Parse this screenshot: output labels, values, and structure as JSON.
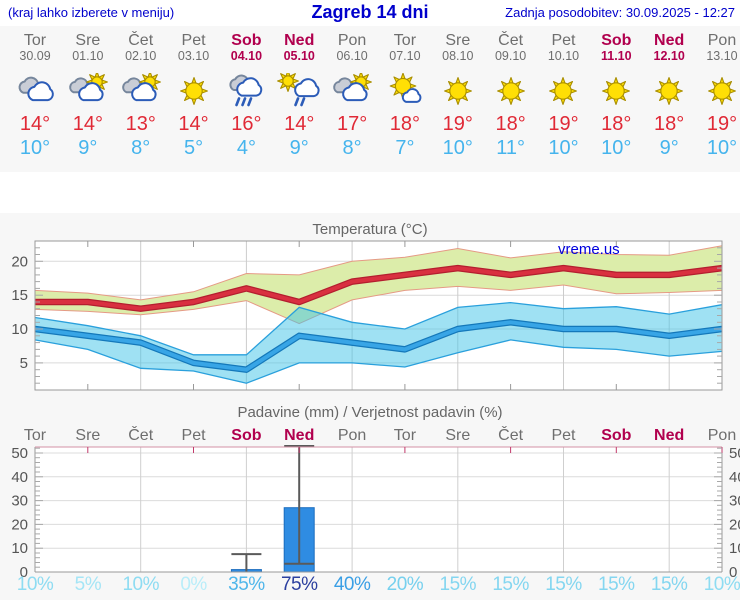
{
  "header": {
    "hint": "(kraj lahko izberete v meniju)",
    "title": "Zagreb 14 dni",
    "updated": "Zadnja posodobitev: 30.09.2025 - 12:27"
  },
  "watermark": {
    "label": "vreme.us",
    "color": "#0000dd"
  },
  "colors": {
    "weekday": "#6e6e6e",
    "weekend": "#b1004e",
    "high_temp": "#e02936",
    "low_temp": "#45b4ed",
    "header_blue": "#0000cc"
  },
  "forecast": {
    "days": [
      {
        "name": "Tor",
        "date": "30.09",
        "icon": "cloudy",
        "high": "14°",
        "low": "10°",
        "weekend": false
      },
      {
        "name": "Sre",
        "date": "01.10",
        "icon": "sun-cloud",
        "high": "14°",
        "low": "9°",
        "weekend": false
      },
      {
        "name": "Čet",
        "date": "02.10",
        "icon": "sun-cloud",
        "high": "13°",
        "low": "8°",
        "weekend": false
      },
      {
        "name": "Pet",
        "date": "03.10",
        "icon": "sunny",
        "high": "14°",
        "low": "5°",
        "weekend": false
      },
      {
        "name": "Sob",
        "date": "04.10",
        "icon": "rain",
        "high": "16°",
        "low": "4°",
        "weekend": true
      },
      {
        "name": "Ned",
        "date": "05.10",
        "icon": "sun-rain",
        "high": "14°",
        "low": "9°",
        "weekend": true
      },
      {
        "name": "Pon",
        "date": "06.10",
        "icon": "sun-cloud",
        "high": "17°",
        "low": "8°",
        "weekend": false
      },
      {
        "name": "Tor",
        "date": "07.10",
        "icon": "mostly-sunny",
        "high": "18°",
        "low": "7°",
        "weekend": false
      },
      {
        "name": "Sre",
        "date": "08.10",
        "icon": "sunny",
        "high": "19°",
        "low": "10°",
        "weekend": false
      },
      {
        "name": "Čet",
        "date": "09.10",
        "icon": "sunny",
        "high": "18°",
        "low": "11°",
        "weekend": false
      },
      {
        "name": "Pet",
        "date": "10.10",
        "icon": "sunny",
        "high": "19°",
        "low": "10°",
        "weekend": false
      },
      {
        "name": "Sob",
        "date": "11.10",
        "icon": "sunny",
        "high": "18°",
        "low": "10°",
        "weekend": true
      },
      {
        "name": "Ned",
        "date": "12.10",
        "icon": "sunny",
        "high": "18°",
        "low": "9°",
        "weekend": true
      },
      {
        "name": "Pon",
        "date": "13.10",
        "icon": "sunny",
        "high": "19°",
        "low": "10°",
        "weekend": false
      }
    ]
  },
  "chart_data": [
    {
      "type": "line",
      "title": "Temperatura (°C)",
      "categories": [
        "Tor 30.09",
        "Sre 01.10",
        "Čet 02.10",
        "Pet 03.10",
        "Sob 04.10",
        "Ned 05.10",
        "Pon 06.10",
        "Tor 07.10",
        "Sre 08.10",
        "Čet 09.10",
        "Pet 10.10",
        "Sob 11.10",
        "Ned 12.10",
        "Pon 13.10"
      ],
      "ylim": [
        1,
        23
      ],
      "yticks": [
        5,
        10,
        15,
        20
      ],
      "grid": true,
      "legend": "none",
      "series": [
        {
          "name": "max_temp",
          "color": "#d22c3c",
          "values": [
            14,
            14,
            13,
            14,
            16,
            14,
            17,
            18,
            19,
            18,
            19,
            18,
            18,
            19
          ]
        },
        {
          "name": "max_range_upper",
          "color": "#dcedaa",
          "values": [
            15.7,
            15.3,
            14.3,
            15.5,
            18.2,
            18.0,
            20.0,
            20.6,
            21.9,
            20.5,
            21.4,
            21.0,
            20.9,
            22.3
          ]
        },
        {
          "name": "max_range_lower",
          "color": "#dcedaa",
          "values": [
            12.9,
            12.6,
            12.1,
            12.9,
            14.2,
            10.8,
            14.3,
            15.7,
            16.3,
            15.7,
            16.5,
            15.2,
            15.4,
            15.7
          ]
        },
        {
          "name": "min_temp",
          "color": "#38a5e6",
          "values": [
            10,
            9,
            8,
            5,
            4,
            9,
            8,
            7,
            10,
            11,
            10,
            10,
            9,
            10
          ]
        },
        {
          "name": "min_range_upper",
          "color": "#8edcf0",
          "values": [
            11.7,
            10.5,
            9.0,
            6.2,
            6.2,
            13.2,
            11.0,
            10.0,
            13.2,
            13.9,
            13.0,
            13.3,
            12.2,
            13.6
          ]
        },
        {
          "name": "min_range_lower",
          "color": "#8edcf0",
          "values": [
            8.4,
            7.0,
            4.2,
            3.8,
            2.0,
            5.0,
            5.0,
            4.4,
            6.5,
            8.4,
            7.3,
            7.0,
            6.0,
            6.7
          ]
        }
      ]
    },
    {
      "type": "bar",
      "title": "Padavine (mm) / Verjetnost padavin (%)",
      "categories": [
        "Tor",
        "Sre",
        "Čet",
        "Pet",
        "Sob",
        "Ned",
        "Pon",
        "Tor",
        "Sre",
        "Čet",
        "Pet",
        "Sob",
        "Ned",
        "Pon"
      ],
      "ylim": [
        0,
        52.5
      ],
      "yticks": [
        0,
        10,
        20,
        30,
        40,
        50
      ],
      "bar_color": "#2f8ce2",
      "values": [
        0,
        0,
        0,
        0,
        1,
        27,
        0,
        0,
        0,
        0,
        0,
        0,
        0,
        0
      ],
      "whiskers": [
        {
          "day_index": 4,
          "min": 0,
          "max": 7.5
        },
        {
          "day_index": 5,
          "min": 3.5,
          "max": 53
        }
      ],
      "probabilities": [
        {
          "label": "10%",
          "value": 10,
          "color": "#8edcf2"
        },
        {
          "label": "5%",
          "value": 5,
          "color": "#a5e5f6"
        },
        {
          "label": "10%",
          "value": 10,
          "color": "#8edcf2"
        },
        {
          "label": "0%",
          "value": 0,
          "color": "#b9edf9"
        },
        {
          "label": "35%",
          "value": 35,
          "color": "#4fb6ea"
        },
        {
          "label": "75%",
          "value": 75,
          "color": "#2b3f9f"
        },
        {
          "label": "40%",
          "value": 40,
          "color": "#3a9fe5"
        },
        {
          "label": "20%",
          "value": 20,
          "color": "#76d0ee"
        },
        {
          "label": "15%",
          "value": 15,
          "color": "#84d6f0"
        },
        {
          "label": "15%",
          "value": 15,
          "color": "#84d6f0"
        },
        {
          "label": "15%",
          "value": 15,
          "color": "#84d6f0"
        },
        {
          "label": "15%",
          "value": 15,
          "color": "#84d6f0"
        },
        {
          "label": "15%",
          "value": 15,
          "color": "#84d6f0"
        },
        {
          "label": "10%",
          "value": 10,
          "color": "#8edcf2"
        }
      ]
    }
  ]
}
